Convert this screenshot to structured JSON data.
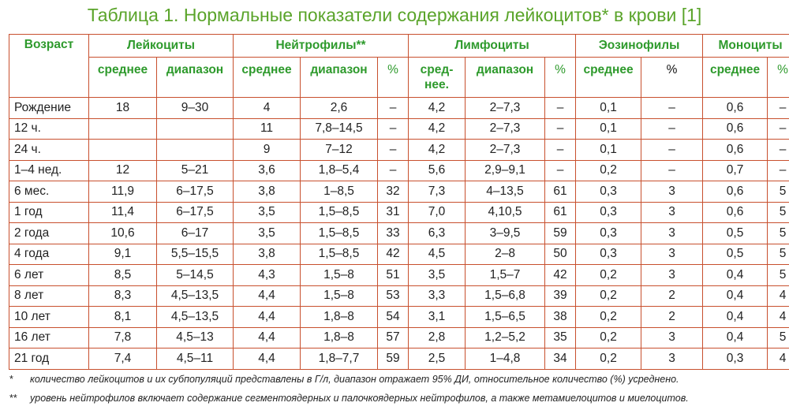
{
  "title": "Таблица 1. Нормальные показатели содержания лейкоцитов* в крови [1]",
  "headers": {
    "age": "Возраст",
    "groups": [
      "Лейкоциты",
      "Нейтрофилы**",
      "Лимфоциты",
      "Эозинофилы",
      "Моноциты"
    ],
    "sub": [
      "среднее",
      "диапазон",
      "среднее",
      "диапазон",
      "%",
      "сред-\nнее.",
      "диапазон",
      "%",
      "среднее",
      "%",
      "среднее",
      "%"
    ]
  },
  "rows": [
    [
      "Рождение",
      "18",
      "9–30",
      "4",
      "2,6",
      "–",
      "4,2",
      "2–7,3",
      "–",
      "0,1",
      "–",
      "0,6",
      "–"
    ],
    [
      "12 ч.",
      "",
      "",
      "11",
      "7,8–14,5",
      "–",
      "4,2",
      "2–7,3",
      "–",
      "0,1",
      "–",
      "0,6",
      "–"
    ],
    [
      "24 ч.",
      "",
      "",
      "9",
      "7–12",
      "–",
      "4,2",
      "2–7,3",
      "–",
      "0,1",
      "–",
      "0,6",
      "–"
    ],
    [
      "1–4 нед.",
      "12",
      "5–21",
      "3,6",
      "1,8–5,4",
      "–",
      "5,6",
      "2,9–9,1",
      "–",
      "0,2",
      "–",
      "0,7",
      "–"
    ],
    [
      "6 мес.",
      "11,9",
      "6–17,5",
      "3,8",
      "1–8,5",
      "32",
      "7,3",
      "4–13,5",
      "61",
      "0,3",
      "3",
      "0,6",
      "5"
    ],
    [
      "1 год",
      "11,4",
      "6–17,5",
      "3,5",
      "1,5–8,5",
      "31",
      "7,0",
      "4,10,5",
      "61",
      "0,3",
      "3",
      "0,6",
      "5"
    ],
    [
      "2 года",
      "10,6",
      "6–17",
      "3,5",
      "1,5–8,5",
      "33",
      "6,3",
      "3–9,5",
      "59",
      "0,3",
      "3",
      "0,5",
      "5"
    ],
    [
      "4 года",
      "9,1",
      "5,5–15,5",
      "3,8",
      "1,5–8,5",
      "42",
      "4,5",
      "2–8",
      "50",
      "0,3",
      "3",
      "0,5",
      "5"
    ],
    [
      "6 лет",
      "8,5",
      "5–14,5",
      "4,3",
      "1,5–8",
      "51",
      "3,5",
      "1,5–7",
      "42",
      "0,2",
      "3",
      "0,4",
      "5"
    ],
    [
      "8 лет",
      "8,3",
      "4,5–13,5",
      "4,4",
      "1,5–8",
      "53",
      "3,3",
      "1,5–6,8",
      "39",
      "0,2",
      "2",
      "0,4",
      "4"
    ],
    [
      "10 лет",
      "8,1",
      "4,5–13,5",
      "4,4",
      "1,8–8",
      "54",
      "3,1",
      "1,5–6,5",
      "38",
      "0,2",
      "2",
      "0,4",
      "4"
    ],
    [
      "16 лет",
      "7,8",
      "4,5–13",
      "4,4",
      "1,8–8",
      "57",
      "2,8",
      "1,2–5,2",
      "35",
      "0,2",
      "3",
      "0,4",
      "5"
    ],
    [
      "21 год",
      "7,4",
      "4,5–11",
      "4,4",
      "1,8–7,7",
      "59",
      "2,5",
      "1–4,8",
      "34",
      "0,2",
      "3",
      "0,3",
      "4"
    ]
  ],
  "footnotes": [
    {
      "mark": "*",
      "text": "количество лейкоцитов и их субпопуляций представлены в Г/л, диапазон отражает 95% ДИ, относительное количество (%) усреднено."
    },
    {
      "mark": "**",
      "text": "уровень нейтрофилов включает содержание сегментоядерных и палочкоядерных нейтрофилов, а также метамиелоцитов и миелоцитов."
    }
  ]
}
